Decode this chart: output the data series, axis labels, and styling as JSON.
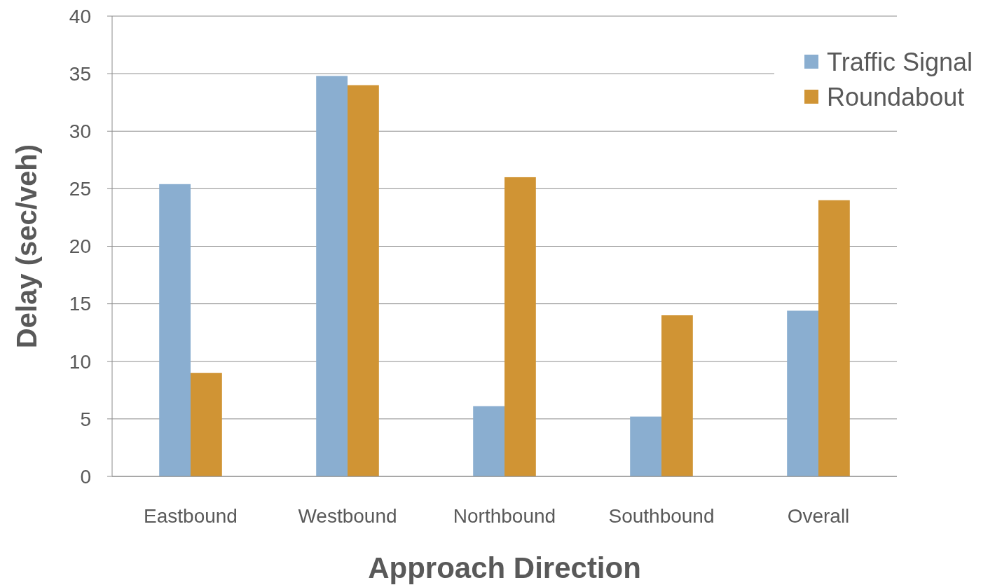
{
  "chart_data": {
    "type": "bar",
    "xlabel": "Approach Direction",
    "ylabel": "Delay (sec/veh)",
    "categories": [
      "Eastbound",
      "Westbound",
      "Northbound",
      "Southbound",
      "Overall"
    ],
    "series": [
      {
        "name": "Traffic Signal",
        "color": "#8aaed0",
        "values": [
          25.4,
          34.8,
          6.1,
          5.2,
          14.4
        ]
      },
      {
        "name": "Roundabout",
        "color": "#d09434",
        "values": [
          9,
          34,
          26,
          14,
          24
        ]
      }
    ],
    "ylim": [
      0,
      40
    ],
    "yticks": [
      0,
      5,
      10,
      15,
      20,
      25,
      30,
      35,
      40
    ],
    "grid": "y",
    "legend": "top right"
  }
}
